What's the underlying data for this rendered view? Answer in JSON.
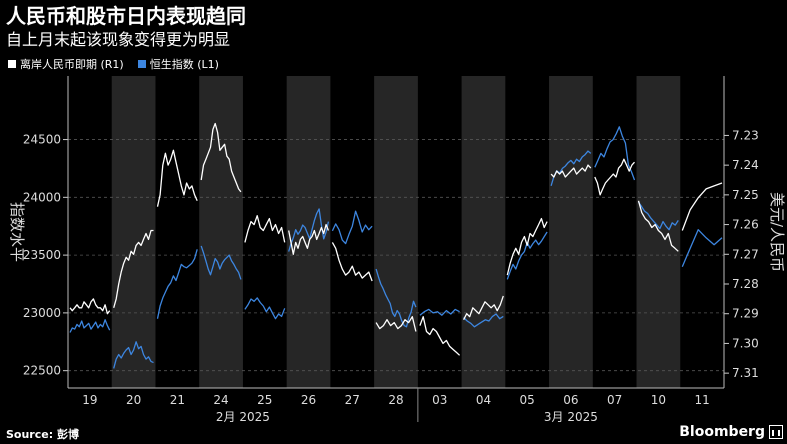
{
  "header": {
    "title": "人民币和股市日内表现趋同",
    "subtitle": "自上月末起该现象变得更为明显"
  },
  "footer": {
    "source": "Source: 彭博",
    "brand": "Bloomberg"
  },
  "colors": {
    "background": "#000000",
    "shade": "#262626",
    "grid": "#555555",
    "cnh": "#ffffff",
    "hsi": "#3d86e0",
    "axis_text": "#dddddd"
  },
  "chart_data": {
    "type": "line",
    "title": "人民币和股市日内表现趋同",
    "subtitle": "自上月末起该现象变得更为明显",
    "x_categories": [
      "19",
      "20",
      "21",
      "24",
      "25",
      "26",
      "27",
      "28",
      "03",
      "04",
      "05",
      "06",
      "07",
      "10",
      "11"
    ],
    "x_month_labels": [
      {
        "label": "2月 2025",
        "categories": [
          "19",
          "20",
          "21",
          "24",
          "25",
          "26",
          "27",
          "28"
        ]
      },
      {
        "label": "3月 2025",
        "categories": [
          "03",
          "04",
          "05",
          "06",
          "07",
          "10",
          "11"
        ]
      }
    ],
    "shaded_days": [
      "20",
      "24",
      "26",
      "28",
      "04",
      "06",
      "10"
    ],
    "y_left": {
      "label": "指数水平",
      "min": 22350,
      "max": 25050,
      "ticks": [
        22500,
        23000,
        23500,
        24000,
        24500
      ]
    },
    "y_right": {
      "label": "美元/人民币",
      "min": 7.21,
      "max": 7.315,
      "inverted": true,
      "ticks": [
        7.23,
        7.24,
        7.25,
        7.26,
        7.27,
        7.28,
        7.29,
        7.3,
        7.31
      ]
    },
    "grid": "horizontal dashed",
    "legend_placement": "top-left",
    "series": [
      {
        "name": "离岸人民币即期 (R1)",
        "axis": "right",
        "color": "#ffffff",
        "sessions": [
          {
            "day": "19",
            "values": [
              7.288,
              7.289,
              7.288,
              7.287,
              7.288,
              7.288,
              7.286,
              7.287,
              7.288,
              7.286,
              7.285,
              7.287,
              7.288,
              7.288,
              7.289,
              7.287,
              7.29,
              7.289
            ]
          },
          {
            "day": "20",
            "values": [
              7.288,
              7.285,
              7.28,
              7.276,
              7.273,
              7.271,
              7.272,
              7.269,
              7.27,
              7.267,
              7.266,
              7.267,
              7.265,
              7.263,
              7.265,
              7.262,
              7.262
            ]
          },
          {
            "day": "21",
            "values": [
              7.254,
              7.25,
              7.24,
              7.236,
              7.24,
              7.238,
              7.235,
              7.239,
              7.243,
              7.247,
              7.25,
              7.246,
              7.248,
              7.247,
              7.25,
              7.252
            ]
          },
          {
            "day": "24",
            "values": [
              7.245,
              7.24,
              7.238,
              7.236,
              7.234,
              7.228,
              7.226,
              7.229,
              7.235,
              7.234,
              7.233,
              7.237,
              7.238,
              7.242,
              7.244,
              7.246,
              7.248,
              7.249
            ]
          },
          {
            "day": "25",
            "values": [
              7.266,
              7.262,
              7.259,
              7.26,
              7.257,
              7.261,
              7.262,
              7.26,
              7.258,
              7.262,
              7.26,
              7.263,
              7.261,
              7.266
            ]
          },
          {
            "day": "26",
            "values": [
              7.262,
              7.266,
              7.27,
              7.266,
              7.268,
              7.265,
              7.264,
              7.266,
              7.268,
              7.265,
              7.264,
              7.262,
              7.265,
              7.263,
              7.261,
              7.263,
              7.26,
              7.262
            ]
          },
          {
            "day": "27",
            "values": [
              7.266,
              7.268,
              7.272,
              7.275,
              7.277,
              7.276,
              7.274,
              7.277,
              7.276,
              7.278,
              7.277,
              7.276,
              7.279
            ]
          },
          {
            "day": "28",
            "values": [
              7.293,
              7.295,
              7.294,
              7.292,
              7.294,
              7.293,
              7.295,
              7.294,
              7.292,
              7.293,
              7.291,
              7.296
            ]
          },
          {
            "day": "03",
            "values": [
              7.294,
              7.291,
              7.296,
              7.297,
              7.295,
              7.296,
              7.298,
              7.3,
              7.299,
              7.301,
              7.302,
              7.303,
              7.304
            ]
          },
          {
            "day": "04",
            "values": [
              7.292,
              7.29,
              7.291,
              7.288,
              7.289,
              7.29,
              7.288,
              7.286,
              7.287,
              7.288,
              7.287,
              7.289,
              7.287,
              7.284
            ]
          },
          {
            "day": "05",
            "values": [
              7.277,
              7.273,
              7.27,
              7.268,
              7.27,
              7.266,
              7.264,
              7.267,
              7.263,
              7.264,
              7.262,
              7.26,
              7.258,
              7.261,
              7.259
            ]
          },
          {
            "day": "06",
            "values": [
              7.243,
              7.244,
              7.242,
              7.243,
              7.242,
              7.244,
              7.243,
              7.242,
              7.241,
              7.243,
              7.242,
              7.241,
              7.242,
              7.24,
              7.241
            ]
          },
          {
            "day": "07",
            "values": [
              7.244,
              7.246,
              7.25,
              7.248,
              7.246,
              7.245,
              7.244,
              7.243,
              7.244,
              7.241,
              7.24,
              7.238,
              7.24,
              7.242,
              7.24,
              7.239
            ]
          },
          {
            "day": "10",
            "values": [
              7.252,
              7.256,
              7.258,
              7.259,
              7.261,
              7.26,
              7.262,
              7.263,
              7.265,
              7.263,
              7.267,
              7.268,
              7.269
            ]
          },
          {
            "day": "11",
            "values": [
              7.262,
              7.255,
              7.251,
              7.248,
              7.247,
              7.246
            ]
          }
        ]
      },
      {
        "name": "恒生指数 (L1)",
        "axis": "left",
        "color": "#3d86e0",
        "sessions": [
          {
            "day": "19",
            "values": [
              22830,
              22870,
              22860,
              22900,
              22880,
              22930,
              22870,
              22890,
              22910,
              22860,
              22890,
              22920,
              22870,
              22900,
              22880,
              22940,
              22890,
              22850
            ]
          },
          {
            "day": "20",
            "values": [
              22520,
              22600,
              22640,
              22610,
              22650,
              22680,
              22700,
              22640,
              22680,
              22750,
              22690,
              22710,
              22640,
              22600,
              22620,
              22580,
              22570
            ]
          },
          {
            "day": "21",
            "values": [
              22950,
              23060,
              23130,
              23180,
              23230,
              23260,
              23320,
              23280,
              23350,
              23420,
              23400,
              23390,
              23410,
              23430,
              23470,
              23550
            ]
          },
          {
            "day": "24",
            "values": [
              23580,
              23520,
              23450,
              23380,
              23330,
              23400,
              23470,
              23440,
              23380,
              23430,
              23460,
              23480,
              23500,
              23450,
              23420,
              23380,
              23350,
              23290
            ]
          },
          {
            "day": "25",
            "values": [
              23030,
              23070,
              23120,
              23100,
              23130,
              23090,
              23060,
              23010,
              23050,
              23000,
              22950,
              22990,
              22970,
              23040
            ]
          },
          {
            "day": "26",
            "values": [
              23530,
              23600,
              23650,
              23720,
              23680,
              23710,
              23760,
              23740,
              23690,
              23640,
              23720,
              23800,
              23860,
              23900,
              23760,
              23640,
              23700,
              23790
            ]
          },
          {
            "day": "27",
            "values": [
              23710,
              23770,
              23720,
              23630,
              23600,
              23680,
              23750,
              23880,
              23800,
              23700,
              23760,
              23720,
              23750
            ]
          },
          {
            "day": "28",
            "values": [
              23380,
              23310,
              23250,
              23210,
              23160,
              23120,
              23080,
              23000,
              22970,
              23020,
              22990,
              22930,
              22890,
              22880,
              22960,
              23010,
              23100,
              23050
            ]
          },
          {
            "day": "03",
            "values": [
              22980,
              23010,
              23030,
              23000,
              23010,
              22980,
              23020,
              22990,
              23030,
              23010
            ]
          },
          {
            "day": "04",
            "values": [
              22960,
              22930,
              22910,
              22880,
              22900,
              22920,
              22940,
              22930,
              22970,
              22990,
              22950,
              22970
            ]
          },
          {
            "day": "05",
            "values": [
              23290,
              23360,
              23420,
              23380,
              23450,
              23500,
              23530,
              23610,
              23560,
              23600,
              23630,
              23590,
              23620,
              23660,
              23700
            ]
          },
          {
            "day": "06",
            "values": [
              24100,
              24180,
              24230,
              24210,
              24250,
              24270,
              24300,
              24320,
              24290,
              24330,
              24310,
              24350,
              24370,
              24400,
              24380
            ]
          },
          {
            "day": "07",
            "values": [
              24260,
              24320,
              24380,
              24350,
              24420,
              24480,
              24500,
              24550,
              24610,
              24530,
              24470,
              24280,
              24220,
              24150
            ]
          },
          {
            "day": "10",
            "values": [
              23960,
              23920,
              23880,
              23860,
              23820,
              23790,
              23760,
              23730,
              23790,
              23750,
              23720,
              23780,
              23760,
              23800
            ]
          },
          {
            "day": "11",
            "values": [
              23400,
              23560,
              23720,
              23650,
              23590,
              23650
            ]
          }
        ]
      }
    ]
  }
}
